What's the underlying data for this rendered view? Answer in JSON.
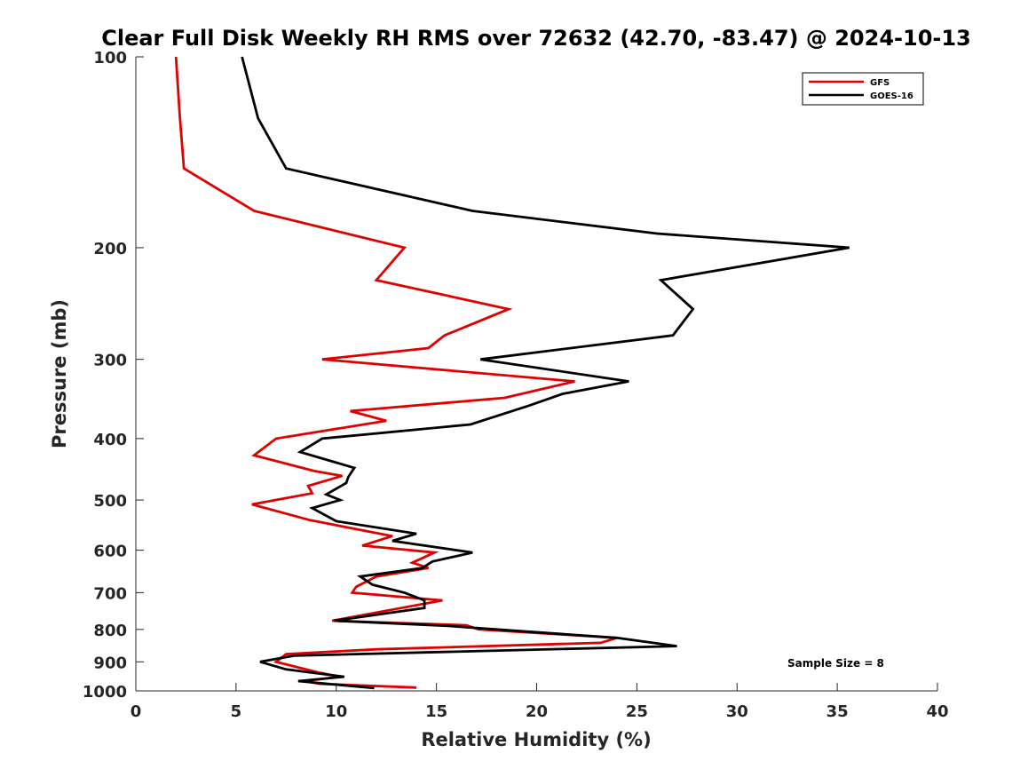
{
  "chart_data": {
    "type": "line",
    "title": "Clear Full Disk Weekly RH RMS over 72632 (42.70, -83.47) @ 2024-10-13",
    "xlabel": "Relative Humidity (%)",
    "ylabel": "Pressure (mb)",
    "xlim": [
      0,
      40
    ],
    "ylim": [
      100,
      1000
    ],
    "y_scale": "log",
    "y_reversed": true,
    "x_ticks": [
      0,
      5,
      10,
      15,
      20,
      25,
      30,
      35,
      40
    ],
    "y_ticks": [
      100,
      200,
      300,
      400,
      500,
      600,
      700,
      800,
      900,
      1000
    ],
    "grid": false,
    "legend_position": "top-right",
    "annotation": "Sample Size = 8",
    "series": [
      {
        "name": "GFS",
        "color": "#e00000",
        "points": [
          [
            2.0,
            100
          ],
          [
            2.2,
            125
          ],
          [
            2.4,
            150
          ],
          [
            5.9,
            175
          ],
          [
            13.4,
            200
          ],
          [
            12.0,
            225
          ],
          [
            18.6,
            250
          ],
          [
            15.4,
            275
          ],
          [
            14.6,
            288
          ],
          [
            9.3,
            300
          ],
          [
            21.9,
            325
          ],
          [
            18.4,
            345
          ],
          [
            10.7,
            362
          ],
          [
            12.5,
            375
          ],
          [
            7.0,
            400
          ],
          [
            5.9,
            425
          ],
          [
            8.9,
            450
          ],
          [
            10.3,
            458
          ],
          [
            8.6,
            475
          ],
          [
            8.8,
            488
          ],
          [
            5.8,
            508
          ],
          [
            8.7,
            538
          ],
          [
            12.8,
            570
          ],
          [
            11.3,
            590
          ],
          [
            14.9,
            605
          ],
          [
            13.8,
            628
          ],
          [
            14.6,
            640
          ],
          [
            12.0,
            660
          ],
          [
            11.0,
            685
          ],
          [
            10.8,
            700
          ],
          [
            15.3,
            720
          ],
          [
            9.8,
            775
          ],
          [
            16.5,
            788
          ],
          [
            17.1,
            800
          ],
          [
            24.0,
            825
          ],
          [
            23.2,
            840
          ],
          [
            12.0,
            860
          ],
          [
            7.5,
            875
          ],
          [
            7.0,
            900
          ],
          [
            9.1,
            935
          ],
          [
            10.2,
            950
          ],
          [
            8.4,
            965
          ],
          [
            9.2,
            975
          ],
          [
            14.0,
            988
          ]
        ]
      },
      {
        "name": "GOES-16",
        "color": "#000000",
        "points": [
          [
            5.3,
            100
          ],
          [
            6.1,
            125
          ],
          [
            7.5,
            150
          ],
          [
            16.8,
            175
          ],
          [
            26.0,
            190
          ],
          [
            35.6,
            200
          ],
          [
            26.2,
            225
          ],
          [
            27.8,
            250
          ],
          [
            26.8,
            275
          ],
          [
            17.2,
            300
          ],
          [
            24.6,
            325
          ],
          [
            21.3,
            340
          ],
          [
            19.6,
            355
          ],
          [
            16.7,
            380
          ],
          [
            9.3,
            400
          ],
          [
            8.2,
            420
          ],
          [
            10.9,
            445
          ],
          [
            10.6,
            460
          ],
          [
            10.5,
            470
          ],
          [
            9.5,
            490
          ],
          [
            10.2,
            500
          ],
          [
            8.8,
            515
          ],
          [
            10.0,
            540
          ],
          [
            14.0,
            565
          ],
          [
            12.8,
            580
          ],
          [
            16.8,
            605
          ],
          [
            14.8,
            625
          ],
          [
            14.3,
            640
          ],
          [
            11.2,
            660
          ],
          [
            11.8,
            680
          ],
          [
            13.4,
            700
          ],
          [
            14.4,
            720
          ],
          [
            14.4,
            740
          ],
          [
            9.9,
            775
          ],
          [
            15.6,
            790
          ],
          [
            18.0,
            800
          ],
          [
            24.0,
            825
          ],
          [
            27.0,
            850
          ],
          [
            7.9,
            880
          ],
          [
            6.2,
            900
          ],
          [
            7.5,
            925
          ],
          [
            10.4,
            950
          ],
          [
            8.1,
            965
          ],
          [
            11.9,
            990
          ]
        ]
      }
    ]
  }
}
